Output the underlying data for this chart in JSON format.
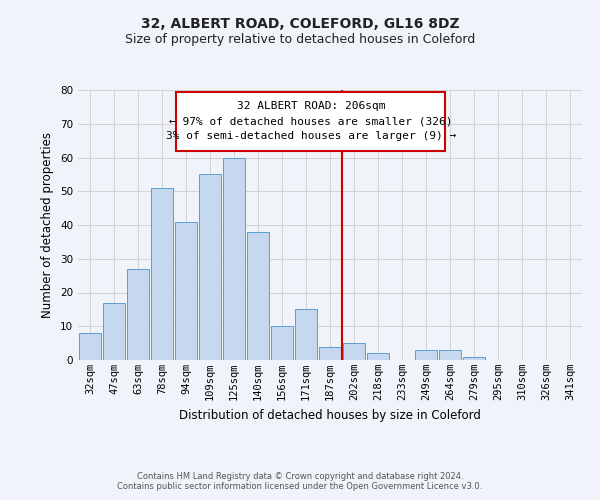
{
  "title": "32, ALBERT ROAD, COLEFORD, GL16 8DZ",
  "subtitle": "Size of property relative to detached houses in Coleford",
  "xlabel": "Distribution of detached houses by size in Coleford",
  "ylabel": "Number of detached properties",
  "footnote1": "Contains HM Land Registry data © Crown copyright and database right 2024.",
  "footnote2": "Contains public sector information licensed under the Open Government Licence v3.0.",
  "bin_labels": [
    "32sqm",
    "47sqm",
    "63sqm",
    "78sqm",
    "94sqm",
    "109sqm",
    "125sqm",
    "140sqm",
    "156sqm",
    "171sqm",
    "187sqm",
    "202sqm",
    "218sqm",
    "233sqm",
    "249sqm",
    "264sqm",
    "279sqm",
    "295sqm",
    "310sqm",
    "326sqm",
    "341sqm"
  ],
  "bar_heights": [
    8,
    17,
    27,
    51,
    41,
    55,
    60,
    38,
    10,
    15,
    4,
    5,
    2,
    0,
    3,
    3,
    1,
    0,
    0,
    0,
    0
  ],
  "bar_color": "#c5d8f0",
  "bar_edge_color": "#5a9fd4",
  "highlight_line_color": "#cc0000",
  "annotation_line1": "32 ALBERT ROAD: 206sqm",
  "annotation_line2": "← 97% of detached houses are smaller (326)",
  "annotation_line3": "3% of semi-detached houses are larger (9) →",
  "annotation_box_color": "#cc0000",
  "ylim": [
    0,
    80
  ],
  "yticks": [
    0,
    10,
    20,
    30,
    40,
    50,
    60,
    70,
    80
  ],
  "grid_color": "#cccccc",
  "bg_color": "#f0f4fa",
  "title_fontsize": 10,
  "subtitle_fontsize": 9,
  "axis_label_fontsize": 8.5,
  "tick_fontsize": 7.5,
  "annotation_fontsize": 8,
  "footnote_fontsize": 6
}
